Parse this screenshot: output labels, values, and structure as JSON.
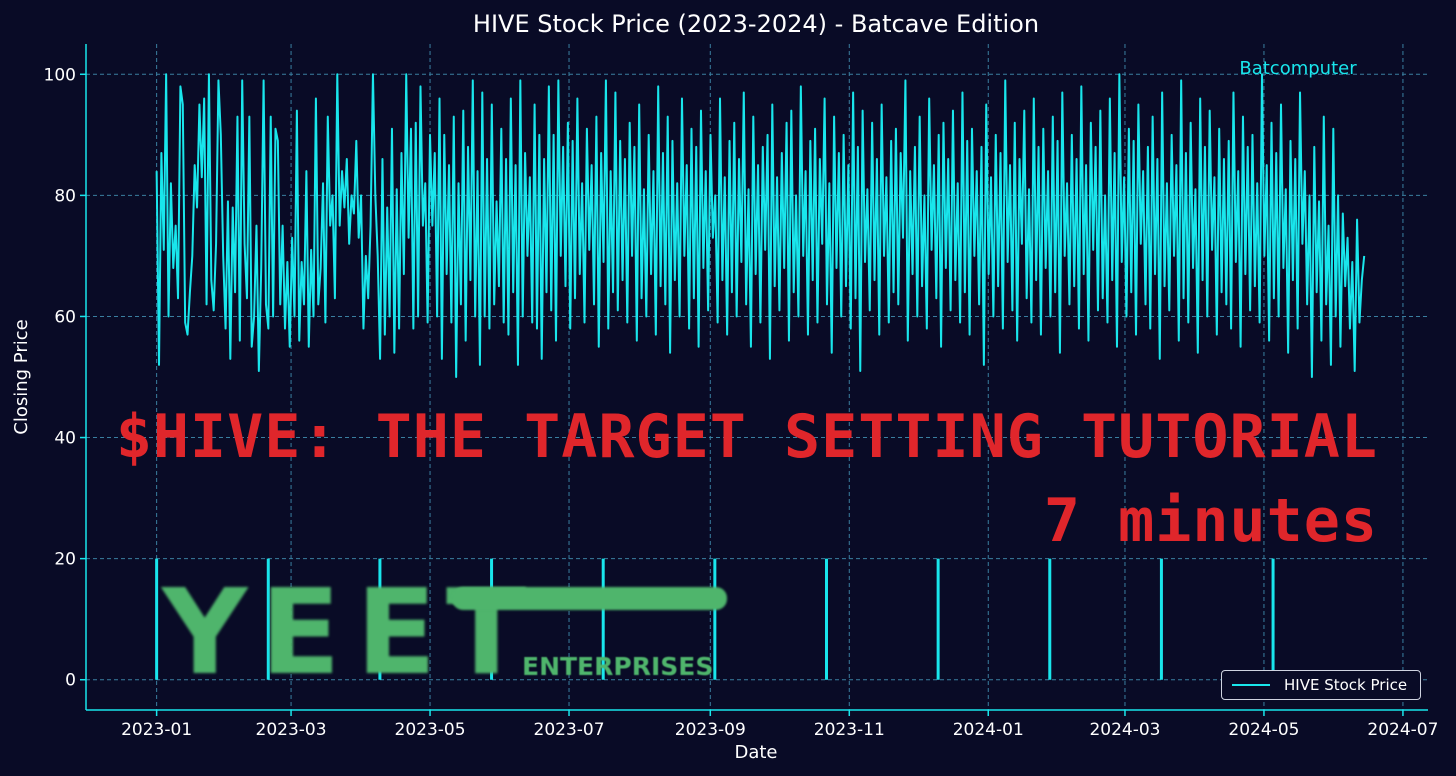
{
  "chart_data": {
    "type": "line",
    "title": "HIVE Stock Price (2023-2024) - Batcave Edition",
    "xlabel": "Date",
    "ylabel": "Closing Price",
    "x_start": "2023-01-01",
    "x_end": "2024-06-14",
    "x_ticks": [
      "2023-01",
      "2023-03",
      "2023-05",
      "2023-07",
      "2023-09",
      "2023-11",
      "2024-01",
      "2024-03",
      "2024-05",
      "2024-07"
    ],
    "ylim": [
      -5,
      105
    ],
    "y_ticks": [
      0,
      20,
      40,
      60,
      80,
      100
    ],
    "grid": true,
    "legend_position": "lower-right",
    "series": [
      {
        "name": "HIVE Stock Price",
        "color": "#19e6ec",
        "values": [
          84,
          52,
          87,
          71,
          100,
          60,
          82,
          68,
          75,
          63,
          98,
          95,
          59,
          57,
          64,
          70,
          85,
          78,
          95,
          83,
          96,
          62,
          100,
          66,
          61,
          72,
          99,
          90,
          70,
          58,
          79,
          53,
          78,
          64,
          93,
          56,
          99,
          72,
          63,
          93,
          55,
          60,
          75,
          51,
          68,
          99,
          62,
          58,
          93,
          60,
          91,
          89,
          62,
          75,
          58,
          69,
          55,
          73,
          60,
          94,
          56,
          69,
          62,
          84,
          55,
          71,
          60,
          96,
          62,
          68,
          82,
          59,
          93,
          75,
          80,
          63,
          100,
          75,
          84,
          78,
          86,
          72,
          80,
          77,
          89,
          73,
          80,
          58,
          70,
          63,
          75,
          100,
          80,
          70,
          53,
          86,
          57,
          78,
          60,
          91,
          54,
          81,
          58,
          87,
          67,
          100,
          73,
          91,
          58,
          92,
          60,
          98,
          75,
          82,
          59,
          90,
          75,
          87,
          60,
          96,
          53,
          90,
          67,
          85,
          59,
          93,
          50,
          82,
          62,
          94,
          56,
          88,
          66,
          99,
          60,
          84,
          52,
          97,
          60,
          86,
          58,
          95,
          62,
          79,
          65,
          91,
          59,
          86,
          57,
          96,
          64,
          85,
          52,
          99,
          60,
          87,
          70,
          83,
          59,
          95,
          58,
          90,
          53,
          86,
          64,
          98,
          61,
          90,
          56,
          99,
          70,
          88,
          65,
          92,
          58,
          89,
          63,
          96,
          67,
          82,
          59,
          91,
          71,
          85,
          62,
          93,
          55,
          87,
          69,
          99,
          58,
          84,
          64,
          97,
          61,
          89,
          66,
          86,
          59,
          92,
          70,
          88,
          56,
          95,
          63,
          81,
          60,
          90,
          67,
          84,
          57,
          98,
          65,
          87,
          62,
          93,
          54,
          89,
          66,
          82,
          60,
          96,
          70,
          85,
          58,
          91,
          63,
          88,
          55,
          94,
          68,
          84,
          61,
          90,
          73,
          80,
          59,
          96,
          66,
          83,
          57,
          89,
          64,
          92,
          60,
          86,
          69,
          97,
          62,
          81,
          55,
          93,
          67,
          85,
          59,
          88,
          71,
          90,
          53,
          95,
          65,
          83,
          61,
          87,
          68,
          92,
          56,
          94,
          64,
          80,
          60,
          98,
          70,
          84,
          57,
          89,
          66,
          91,
          59,
          86,
          72,
          96,
          62,
          82,
          54,
          93,
          68,
          87,
          60,
          90,
          65,
          85,
          58,
          97,
          63,
          88,
          51,
          94,
          69,
          81,
          61,
          92,
          66,
          86,
          57,
          95,
          70,
          83,
          59,
          89,
          64,
          91,
          62,
          87,
          73,
          99,
          56,
          84,
          67,
          88,
          60,
          93,
          65,
          80,
          58,
          96,
          71,
          85,
          63,
          90,
          55,
          92,
          68,
          86,
          61,
          94,
          66,
          82,
          59,
          97,
          64,
          89,
          57,
          91,
          70,
          84,
          62,
          88,
          52,
          95,
          67,
          83,
          60,
          90,
          65,
          87,
          58,
          99,
          69,
          85,
          61,
          92,
          56,
          86,
          72,
          94,
          63,
          81,
          59,
          96,
          66,
          88,
          57,
          91,
          68,
          84,
          60,
          93,
          64,
          89,
          54,
          97,
          70,
          82,
          62,
          90,
          65,
          86,
          58,
          98,
          67,
          85,
          56,
          92,
          71,
          88,
          61,
          94,
          63,
          80,
          59,
          96,
          66,
          87,
          55,
          100,
          69,
          83,
          60,
          91,
          64,
          89,
          57,
          95,
          72,
          84,
          62,
          88,
          58,
          93,
          67,
          86,
          53,
          97,
          65,
          82,
          61,
          90,
          70,
          85,
          56,
          99,
          63,
          87,
          59,
          92,
          68,
          81,
          54,
          96,
          66,
          88,
          60,
          94,
          71,
          83,
          57,
          91,
          64,
          86,
          62,
          89,
          58,
          97,
          69,
          84,
          55,
          93,
          67,
          88,
          61,
          90,
          65,
          82,
          59,
          100,
          70,
          85,
          56,
          92,
          63,
          87,
          60,
          95,
          68,
          81,
          54,
          89,
          66,
          86,
          58,
          97,
          72,
          84,
          62,
          80,
          50,
          88,
          64,
          79,
          56,
          93,
          62,
          75,
          52,
          91,
          60,
          80,
          55,
          77,
          65,
          73,
          58,
          69,
          51,
          76,
          59,
          66,
          70
        ]
      }
    ],
    "annotation_label": "Batcomputer",
    "spike_markers_value": 20,
    "spike_markers_dates": [
      "2023-01-01",
      "2023-02-19",
      "2023-04-09",
      "2023-05-28",
      "2023-07-16",
      "2023-09-03",
      "2023-10-22",
      "2023-12-10",
      "2024-01-28",
      "2024-03-17",
      "2024-05-05"
    ]
  },
  "overlay": {
    "headline": "$HIVE: THE TARGET SETTING TUTORIAL",
    "duration": "7 minutes",
    "headline_color": "#e0262b"
  },
  "logo": {
    "letters": [
      "Y",
      "E",
      "E",
      "T"
    ],
    "subtitle": "ENTERPRISES",
    "color": "#4fb56c"
  },
  "legend": {
    "label": "HIVE Stock Price"
  },
  "colors": {
    "background": "#090b26",
    "line": "#19e6ec",
    "grid": "#3a7fa0",
    "axis": "#19e6ec"
  }
}
